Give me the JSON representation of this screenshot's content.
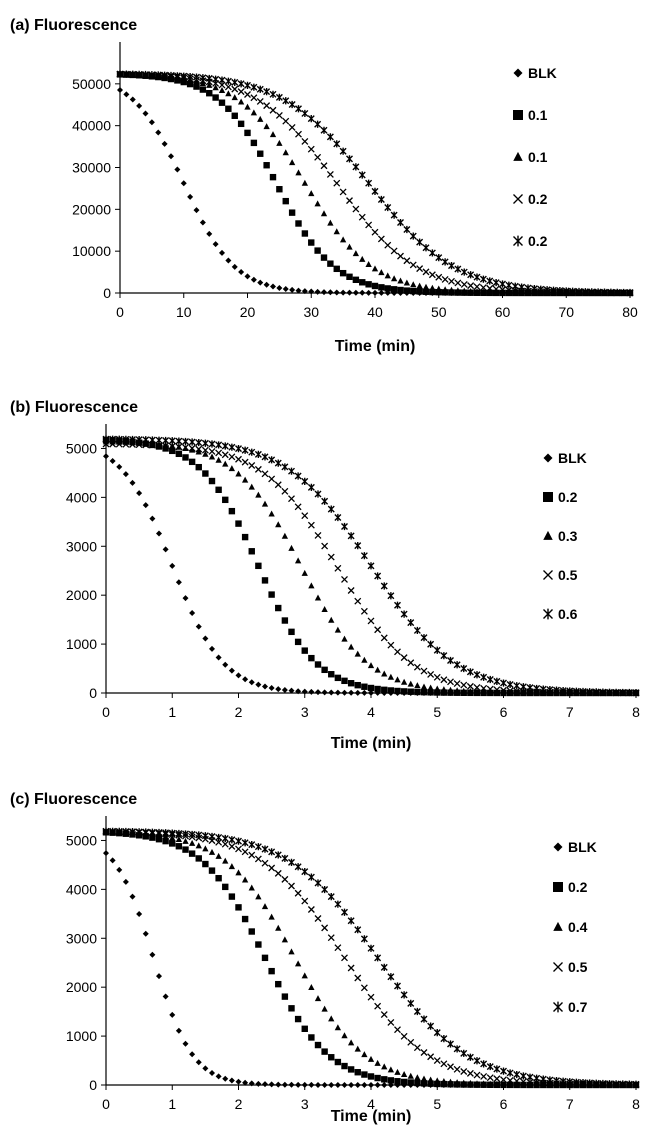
{
  "figure": {
    "panels": [
      "(a)",
      "(b)",
      "(c)"
    ]
  },
  "chart_data": [
    {
      "type": "scatter",
      "panel_label": "(a)",
      "title": "Fluorescence",
      "xlabel": "Time (min)",
      "ylabel": "",
      "xlim": [
        0,
        80
      ],
      "ylim": [
        0,
        60000
      ],
      "xticks": [
        0,
        10,
        20,
        30,
        40,
        50,
        60,
        70,
        80
      ],
      "yticks": [
        0,
        10000,
        20000,
        30000,
        40000,
        50000
      ],
      "grid": false,
      "legend_position": "right",
      "x_step": 1,
      "series": [
        {
          "name": "BLK",
          "marker": "diamond",
          "start": 52500,
          "midpoint": 10,
          "slope": 0.25,
          "x_max": 80
        },
        {
          "name": "0.1",
          "marker": "square",
          "start": 52500,
          "midpoint": 24.5,
          "slope": 0.22,
          "x_max": 80
        },
        {
          "name": "0.1",
          "marker": "triangle",
          "start": 52500,
          "midpoint": 29,
          "slope": 0.19,
          "x_max": 80
        },
        {
          "name": "0.2",
          "marker": "x",
          "start": 52500,
          "midpoint": 34,
          "slope": 0.16,
          "x_max": 80
        },
        {
          "name": "0.2",
          "marker": "star",
          "start": 52500,
          "midpoint": 39,
          "slope": 0.15,
          "x_max": 80
        }
      ]
    },
    {
      "type": "scatter",
      "panel_label": "(b)",
      "title": "Fluorescence",
      "xlabel": "Time (min)",
      "ylabel": "",
      "xlim": [
        0,
        8
      ],
      "ylim": [
        0,
        5500
      ],
      "xticks": [
        0,
        1,
        2,
        3,
        4,
        5,
        6,
        7,
        8
      ],
      "yticks": [
        0,
        1000,
        2000,
        3000,
        4000,
        5000
      ],
      "grid": false,
      "legend_position": "right",
      "x_step": 0.1,
      "series": [
        {
          "name": "BLK",
          "marker": "diamond",
          "start": 5200,
          "midpoint": 1.0,
          "slope": 2.6,
          "x_max": 8
        },
        {
          "name": "0.2",
          "marker": "square",
          "start": 5200,
          "midpoint": 2.3,
          "slope": 2.3,
          "x_max": 8
        },
        {
          "name": "0.3",
          "marker": "triangle",
          "start": 5150,
          "midpoint": 2.95,
          "slope": 2.0,
          "x_max": 8
        },
        {
          "name": "0.5",
          "marker": "x",
          "start": 5100,
          "midpoint": 3.5,
          "slope": 1.8,
          "x_max": 8
        },
        {
          "name": "0.6",
          "marker": "star",
          "start": 5200,
          "midpoint": 4.0,
          "slope": 1.6,
          "x_max": 8
        }
      ]
    },
    {
      "type": "scatter",
      "panel_label": "(c)",
      "title": "Fluorescence",
      "xlabel": "Time (min)",
      "ylabel": "",
      "xlim": [
        0,
        8
      ],
      "ylim": [
        0,
        5500
      ],
      "xticks": [
        0,
        1,
        2,
        3,
        4,
        5,
        6,
        7,
        8
      ],
      "yticks": [
        0,
        1000,
        2000,
        3000,
        4000,
        5000
      ],
      "grid": false,
      "legend_position": "right",
      "x_step": 0.1,
      "series": [
        {
          "name": "BLK",
          "marker": "diamond",
          "start": 5150,
          "midpoint": 0.72,
          "slope": 3.4,
          "x_max": 8
        },
        {
          "name": "0.2",
          "marker": "square",
          "start": 5200,
          "midpoint": 2.4,
          "slope": 2.1,
          "x_max": 8
        },
        {
          "name": "0.4",
          "marker": "triangle",
          "start": 5200,
          "midpoint": 2.85,
          "slope": 1.9,
          "x_max": 8
        },
        {
          "name": "0.5",
          "marker": "x",
          "start": 5200,
          "midpoint": 3.6,
          "slope": 1.6,
          "x_max": 8
        },
        {
          "name": "0.7",
          "marker": "star",
          "start": 5200,
          "midpoint": 4.1,
          "slope": 1.5,
          "x_max": 8
        }
      ]
    }
  ]
}
